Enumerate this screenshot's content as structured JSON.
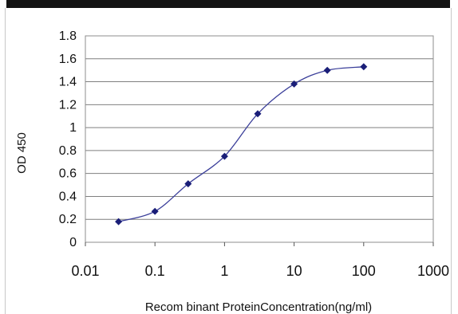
{
  "chart_data": {
    "type": "line",
    "title": "",
    "xlabel": "Recom binant ProteinConcentration(ng/ml)",
    "ylabel": "OD 450",
    "x_scale": "log",
    "xlim": [
      0.01,
      1000
    ],
    "ylim": [
      0,
      1.8
    ],
    "grid": true,
    "legend": "none",
    "x_ticks": [
      {
        "value": 0.01,
        "label": "0.01"
      },
      {
        "value": 0.1,
        "label": "0.1"
      },
      {
        "value": 1,
        "label": "1"
      },
      {
        "value": 10,
        "label": "10"
      },
      {
        "value": 100,
        "label": "100"
      },
      {
        "value": 1000,
        "label": "1000"
      }
    ],
    "y_ticks": [
      {
        "value": 0,
        "label": "0"
      },
      {
        "value": 0.2,
        "label": "0.2"
      },
      {
        "value": 0.4,
        "label": "0.4"
      },
      {
        "value": 0.6,
        "label": "0.6"
      },
      {
        "value": 0.8,
        "label": "0.8"
      },
      {
        "value": 1,
        "label": "1"
      },
      {
        "value": 1.2,
        "label": "1.2"
      },
      {
        "value": 1.4,
        "label": "1.4"
      },
      {
        "value": 1.6,
        "label": "1.6"
      },
      {
        "value": 1.8,
        "label": "1.8"
      }
    ],
    "series": [
      {
        "x": [
          0.03,
          0.1,
          0.3,
          1,
          3,
          10,
          30,
          100
        ],
        "y": [
          0.18,
          0.27,
          0.51,
          0.75,
          1.12,
          1.38,
          1.5,
          1.53
        ],
        "color": "#3b3f9a",
        "marker_color": "#1a1e78"
      }
    ],
    "colors": {
      "line": "#3b3f9a",
      "marker": "#1a1e78",
      "grid": "#7f7f7f",
      "plot_border": "#8c8c8c"
    }
  }
}
